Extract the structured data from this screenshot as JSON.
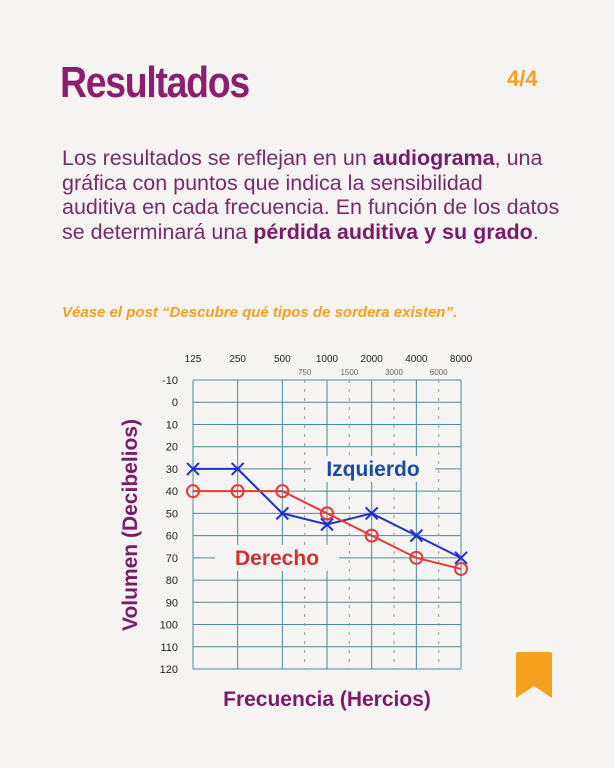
{
  "header": {
    "title": "Resultados",
    "page": "4/4"
  },
  "body": {
    "p1": "Los resultados se reflejan en un ",
    "b1": "audiograma",
    "p2": ", una gráfica con puntos que indica la sensibilidad auditiva en cada frecuencia. En función de los datos se determinará una ",
    "b2": "pérdida auditiva y su grado",
    "p3": "."
  },
  "note": "Véase el post “Descubre qué tipos de sordera existen”.",
  "chart_data": {
    "type": "line",
    "xlabel": "Frecuencia (Hercios)",
    "ylabel": "Volumen (Decibelios)",
    "x_ticks": [
      "125",
      "250",
      "500",
      "1000",
      "2000",
      "4000",
      "8000"
    ],
    "x_minor_ticks": [
      "750",
      "1500",
      "3000",
      "6000"
    ],
    "y_ticks": [
      -10,
      0,
      10,
      20,
      30,
      40,
      50,
      60,
      70,
      80,
      90,
      100,
      110,
      120
    ],
    "ylim": [
      -10,
      120
    ],
    "y_inverted": true,
    "series": [
      {
        "name": "Izquierdo",
        "marker": "x",
        "color": "#1f2fcf",
        "label_color": "#1b4aa0",
        "values": [
          30,
          30,
          50,
          55,
          50,
          60,
          70
        ]
      },
      {
        "name": "Derecho",
        "marker": "o",
        "color": "#e53935",
        "label_color": "#d32f2f",
        "values": [
          40,
          40,
          40,
          50,
          60,
          70,
          75
        ]
      }
    ]
  },
  "icons": {
    "bookmark": "bookmark-icon",
    "color": "#f5a01f"
  }
}
